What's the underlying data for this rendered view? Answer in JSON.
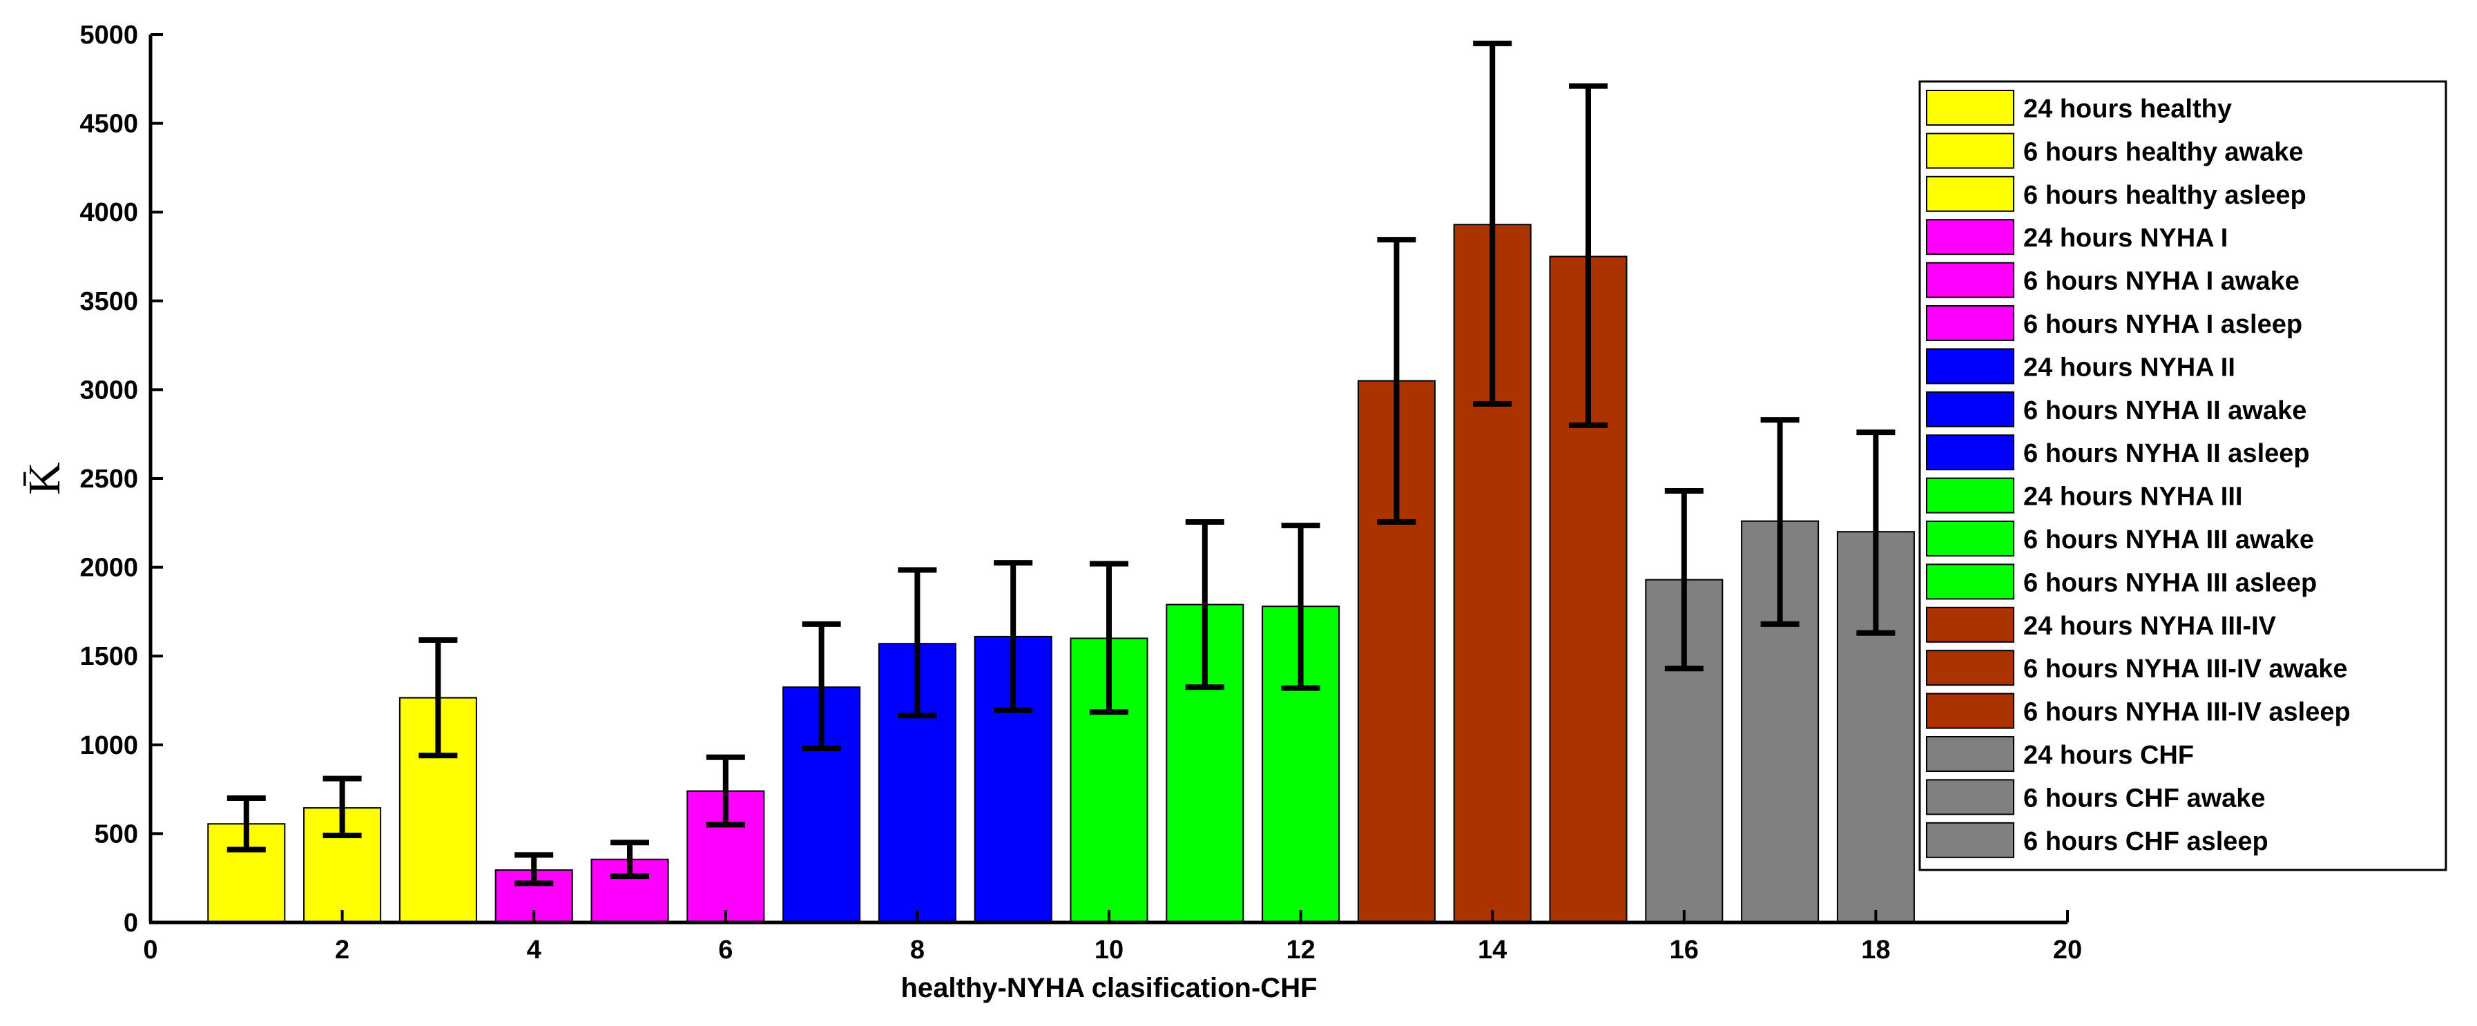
{
  "chart_data": {
    "type": "bar",
    "title": "",
    "xlabel": "healthy-NYHA clasification-CHF",
    "ylabel": "K̄",
    "xlim": [
      0,
      20
    ],
    "ylim": [
      0,
      5000
    ],
    "xticks": [
      "0",
      "2",
      "4",
      "6",
      "8",
      "10",
      "12",
      "14",
      "16",
      "18",
      "20"
    ],
    "yticks": [
      "0",
      "500",
      "1000",
      "1500",
      "2000",
      "2500",
      "3000",
      "3500",
      "4000",
      "4500",
      "5000"
    ],
    "grid": false,
    "legend_position": "right",
    "bars": [
      {
        "x": 1,
        "name": "24 hours healthy",
        "value": 555,
        "err_low": 410,
        "err_high": 700,
        "color": "#ffff00"
      },
      {
        "x": 2,
        "name": "6 hours healthy awake",
        "value": 645,
        "err_low": 490,
        "err_high": 810,
        "color": "#ffff00"
      },
      {
        "x": 3,
        "name": "6 hours healthy asleep",
        "value": 1265,
        "err_low": 940,
        "err_high": 1590,
        "color": "#ffff00"
      },
      {
        "x": 4,
        "name": "24 hours NYHA I",
        "value": 295,
        "err_low": 220,
        "err_high": 380,
        "color": "#ff00ff"
      },
      {
        "x": 5,
        "name": "6 hours NYHA I awake",
        "value": 355,
        "err_low": 260,
        "err_high": 450,
        "color": "#ff00ff"
      },
      {
        "x": 6,
        "name": "6 hours NYHA I asleep",
        "value": 740,
        "err_low": 550,
        "err_high": 930,
        "color": "#ff00ff"
      },
      {
        "x": 7,
        "name": "24 hours NYHA II",
        "value": 1325,
        "err_low": 980,
        "err_high": 1680,
        "color": "#0000ff"
      },
      {
        "x": 8,
        "name": "6 hours NYHA II awake",
        "value": 1570,
        "err_low": 1165,
        "err_high": 1985,
        "color": "#0000ff"
      },
      {
        "x": 9,
        "name": "6 hours NYHA II asleep",
        "value": 1610,
        "err_low": 1195,
        "err_high": 2025,
        "color": "#0000ff"
      },
      {
        "x": 10,
        "name": "24 hours NYHA III",
        "value": 1600,
        "err_low": 1185,
        "err_high": 2020,
        "color": "#00ff00"
      },
      {
        "x": 11,
        "name": "6 hours NYHA III awake",
        "value": 1790,
        "err_low": 1325,
        "err_high": 2255,
        "color": "#00ff00"
      },
      {
        "x": 12,
        "name": "6 hours NYHA III asleep",
        "value": 1780,
        "err_low": 1320,
        "err_high": 2235,
        "color": "#00ff00"
      },
      {
        "x": 13,
        "name": "24 hours NYHA III-IV",
        "value": 3050,
        "err_low": 2255,
        "err_high": 3845,
        "color": "#aa3300"
      },
      {
        "x": 14,
        "name": "6 hours NYHA III-IV awake",
        "value": 3930,
        "err_low": 2920,
        "err_high": 4950,
        "color": "#aa3300"
      },
      {
        "x": 15,
        "name": "6 hours NYHA III-IV asleep",
        "value": 3750,
        "err_low": 2800,
        "err_high": 4710,
        "color": "#aa3300"
      },
      {
        "x": 16,
        "name": "24 hours CHF",
        "value": 1930,
        "err_low": 1430,
        "err_high": 2430,
        "color": "#808080"
      },
      {
        "x": 17,
        "name": "6 hours CHF awake",
        "value": 2260,
        "err_low": 1680,
        "err_high": 2830,
        "color": "#808080"
      },
      {
        "x": 18,
        "name": "6 hours CHF asleep",
        "value": 2200,
        "err_low": 1630,
        "err_high": 2760,
        "color": "#808080"
      }
    ],
    "legend": [
      {
        "label": "24 hours healthy",
        "color": "#ffff00"
      },
      {
        "label": "6 hours healthy awake",
        "color": "#ffff00"
      },
      {
        "label": "6 hours healthy asleep",
        "color": "#ffff00"
      },
      {
        "label": "24 hours NYHA I",
        "color": "#ff00ff"
      },
      {
        "label": "6 hours NYHA I awake",
        "color": "#ff00ff"
      },
      {
        "label": "6 hours NYHA I asleep",
        "color": "#ff00ff"
      },
      {
        "label": "24 hours NYHA II",
        "color": "#0000ff"
      },
      {
        "label": "6 hours NYHA II awake",
        "color": "#0000ff"
      },
      {
        "label": "6 hours NYHA II asleep",
        "color": "#0000ff"
      },
      {
        "label": "24 hours NYHA III",
        "color": "#00ff00"
      },
      {
        "label": "6 hours NYHA III awake",
        "color": "#00ff00"
      },
      {
        "label": "6 hours NYHA III asleep",
        "color": "#00ff00"
      },
      {
        "label": "24 hours NYHA III-IV",
        "color": "#aa3300"
      },
      {
        "label": "6 hours NYHA III-IV awake",
        "color": "#aa3300"
      },
      {
        "label": "6 hours NYHA III-IV asleep",
        "color": "#aa3300"
      },
      {
        "label": "24 hours CHF",
        "color": "#808080"
      },
      {
        "label": "6 hours CHF awake",
        "color": "#808080"
      },
      {
        "label": "6 hours CHF asleep",
        "color": "#808080"
      }
    ]
  }
}
